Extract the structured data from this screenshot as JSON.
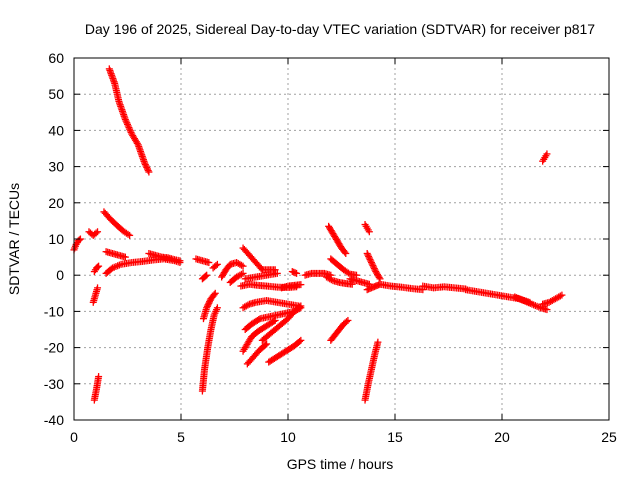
{
  "chart_data": {
    "type": "scatter",
    "title": "Day 196 of 2025, Sidereal Day-to-day VTEC variation (SDTVAR) for receiver p817",
    "xlabel": "GPS time / hours",
    "ylabel": "SDTVAR / TECUs",
    "xlim": [
      0,
      25
    ],
    "ylim": [
      -40,
      60
    ],
    "xticks": [
      "0",
      "5",
      "10",
      "15",
      "20",
      "25"
    ],
    "yticks": [
      "-40",
      "-30",
      "-20",
      "-10",
      "0",
      "10",
      "20",
      "30",
      "40",
      "50",
      "60"
    ],
    "grid": true,
    "marker": "plus",
    "color": "#ff0000",
    "segments": [
      {
        "x": [
          1.65,
          1.9,
          2.1,
          2.4,
          2.7,
          3.0,
          3.3,
          3.5
        ],
        "y": [
          57,
          53,
          48,
          43,
          39,
          36,
          31,
          28.5
        ]
      },
      {
        "x": [
          1.4,
          1.7,
          2.0,
          2.3,
          2.6
        ],
        "y": [
          17.5,
          15.5,
          13.8,
          12.2,
          11
        ]
      },
      {
        "x": [
          0.0,
          0.1,
          0.2,
          0.3
        ],
        "y": [
          7,
          8.5,
          9.5,
          10
        ]
      },
      {
        "x": [
          0.7,
          0.9,
          1.1
        ],
        "y": [
          12,
          11,
          12
        ]
      },
      {
        "x": [
          0.95,
          1.05,
          1.15
        ],
        "y": [
          1,
          2,
          2.5
        ]
      },
      {
        "x": [
          1.5,
          1.8,
          2.1,
          2.4
        ],
        "y": [
          6.5,
          6,
          5.5,
          5
        ]
      },
      {
        "x": [
          1.5,
          1.8,
          2.2,
          2.7,
          3.2,
          3.7,
          4.2,
          4.7,
          4.95
        ],
        "y": [
          0.5,
          2,
          3,
          3.5,
          3.8,
          4.2,
          4.5,
          4,
          3.5
        ]
      },
      {
        "x": [
          3.5,
          3.8,
          4.1,
          4.4,
          4.7,
          4.95
        ],
        "y": [
          6,
          5.5,
          5,
          4.8,
          4.3,
          4
        ]
      },
      {
        "x": [
          0.9,
          1.0,
          1.1
        ],
        "y": [
          -7.5,
          -5.5,
          -3.5
        ]
      },
      {
        "x": [
          0.95,
          1.05,
          1.15
        ],
        "y": [
          -34.5,
          -31.5,
          -28
        ]
      },
      {
        "x": [
          5.7,
          6.0,
          6.3
        ],
        "y": [
          4.5,
          4,
          3.5
        ]
      },
      {
        "x": [
          6.0,
          6.1,
          6.2
        ],
        "y": [
          -1,
          -0.5,
          0
        ]
      },
      {
        "x": [
          6.5,
          6.7
        ],
        "y": [
          2,
          3
        ]
      },
      {
        "x": [
          6.05,
          6.2,
          6.4,
          6.6
        ],
        "y": [
          -12,
          -9,
          -6.5,
          -5
        ]
      },
      {
        "x": [
          6.0,
          6.1,
          6.25,
          6.4,
          6.55,
          6.7
        ],
        "y": [
          -32,
          -26,
          -20,
          -15,
          -11,
          -9
        ]
      },
      {
        "x": [
          6.9,
          7.1,
          7.3,
          7.6,
          7.9
        ],
        "y": [
          -0.5,
          1.5,
          3,
          3.5,
          2.5
        ]
      },
      {
        "x": [
          7.3,
          7.6,
          7.9
        ],
        "y": [
          -2,
          -0.5,
          0.5
        ]
      },
      {
        "x": [
          8.0,
          8.5,
          9.0,
          9.5
        ],
        "y": [
          -1,
          -0.5,
          0,
          0.5
        ]
      },
      {
        "x": [
          7.9,
          8.2,
          8.5,
          8.8
        ],
        "y": [
          7.5,
          5.5,
          3.5,
          1.5
        ]
      },
      {
        "x": [
          8.8,
          9.1,
          9.4
        ],
        "y": [
          1.5,
          1.5,
          1.5
        ]
      },
      {
        "x": [
          7.8,
          8.2,
          8.6,
          9.0,
          9.5,
          10.0,
          10.4
        ],
        "y": [
          -3,
          -2.5,
          -2.8,
          -3,
          -3.3,
          -3.4,
          -3.2
        ]
      },
      {
        "x": [
          7.9,
          8.2,
          8.5,
          9.0,
          9.5,
          10.0,
          10.5
        ],
        "y": [
          -9,
          -8,
          -7.5,
          -7,
          -7.5,
          -8,
          -8.5
        ]
      },
      {
        "x": [
          8.0,
          8.3,
          8.7,
          9.1,
          9.5,
          9.9,
          10.3,
          10.6
        ],
        "y": [
          -15,
          -13.5,
          -12,
          -11.5,
          -11,
          -10.5,
          -10,
          -9
        ]
      },
      {
        "x": [
          8.0,
          8.3,
          8.6,
          9.0,
          9.4
        ],
        "y": [
          -20,
          -17,
          -15.5,
          -14,
          -12.5
        ]
      },
      {
        "x": [
          8.8,
          9.2,
          9.6,
          10.0,
          10.3,
          10.6
        ],
        "y": [
          -18,
          -16,
          -14,
          -12,
          -10,
          -8.5
        ]
      },
      {
        "x": [
          8.1,
          8.4,
          8.7,
          9.0
        ],
        "y": [
          -24.5,
          -22.5,
          -20.5,
          -19
        ]
      },
      {
        "x": [
          9.1,
          9.5,
          9.9,
          10.3,
          10.6
        ],
        "y": [
          -24,
          -22.5,
          -21,
          -19.5,
          -18
        ]
      },
      {
        "x": [
          7.9,
          8.0
        ],
        "y": [
          -21,
          -20
        ]
      },
      {
        "x": [
          9.7,
          10.0,
          10.3,
          10.6
        ],
        "y": [
          -3.5,
          -3,
          -2.8,
          -2.6
        ]
      },
      {
        "x": [
          10.2,
          10.4
        ],
        "y": [
          1,
          0.5
        ]
      },
      {
        "x": [
          10.8,
          11.1,
          11.4,
          11.7,
          12.0
        ],
        "y": [
          0,
          0.5,
          0.5,
          0.5,
          0
        ]
      },
      {
        "x": [
          11.9,
          12.1,
          12.3,
          12.5,
          12.7
        ],
        "y": [
          13.5,
          11.5,
          9.5,
          7.5,
          6
        ]
      },
      {
        "x": [
          12.0,
          12.3,
          12.6,
          12.9,
          13.2
        ],
        "y": [
          4.5,
          3,
          1.5,
          0.3,
          0
        ]
      },
      {
        "x": [
          11.8,
          12.1,
          12.4,
          12.7,
          13.0
        ],
        "y": [
          -0.5,
          -1.5,
          -2,
          -2.3,
          -2.5
        ]
      },
      {
        "x": [
          12.9,
          13.2,
          13.5,
          13.8
        ],
        "y": [
          -1,
          -1.5,
          -2,
          -2.5
        ]
      },
      {
        "x": [
          12.0,
          12.2,
          12.4,
          12.6,
          12.8
        ],
        "y": [
          -18,
          -16.5,
          -15,
          -13.5,
          -12.5
        ]
      },
      {
        "x": [
          13.6,
          13.7,
          13.8
        ],
        "y": [
          14,
          13,
          12
        ]
      },
      {
        "x": [
          13.7,
          13.9,
          14.1,
          14.3
        ],
        "y": [
          6,
          3.5,
          1,
          -1
        ]
      },
      {
        "x": [
          13.7,
          13.9,
          14.1,
          14.3
        ],
        "y": [
          -4,
          -3.5,
          -3,
          -2.5
        ]
      },
      {
        "x": [
          13.6,
          13.75,
          13.9,
          14.05,
          14.2
        ],
        "y": [
          -34.5,
          -30,
          -26,
          -22,
          -18.5
        ]
      },
      {
        "x": [
          14.3,
          14.8,
          15.3,
          15.8,
          16.3
        ],
        "y": [
          -2.5,
          -3,
          -3.3,
          -3.7,
          -4
        ]
      },
      {
        "x": [
          16.3,
          16.8,
          17.3,
          17.8,
          18.3
        ],
        "y": [
          -3,
          -3.5,
          -3.2,
          -3.5,
          -3.8
        ]
      },
      {
        "x": [
          18.3,
          18.8,
          19.3,
          19.8,
          20.3,
          20.8,
          21.3
        ],
        "y": [
          -4,
          -4.5,
          -5,
          -5.5,
          -6,
          -6.5,
          -7.5
        ]
      },
      {
        "x": [
          20.6,
          21.0,
          21.4,
          21.8,
          22.1
        ],
        "y": [
          -6,
          -7,
          -8,
          -9,
          -9.5
        ]
      },
      {
        "x": [
          21.9,
          22.2,
          22.5,
          22.8
        ],
        "y": [
          -8,
          -7.5,
          -6.5,
          -5.5
        ]
      },
      {
        "x": [
          21.9,
          22.0,
          22.1
        ],
        "y": [
          31.5,
          32.5,
          33.5
        ]
      }
    ]
  }
}
